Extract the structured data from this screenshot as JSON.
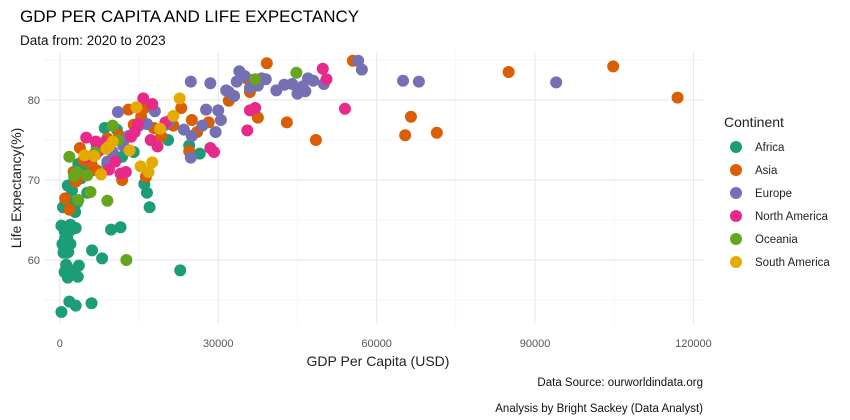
{
  "chart_data": {
    "type": "scatter",
    "title": "GDP PER CAPITA AND LIFE EXPECTANCY",
    "subtitle": "Data from: 2020 to 2023",
    "xlabel": "GDP Per Capita (USD)",
    "ylabel": "Life Expectancy(%)",
    "xlim": [
      -3000,
      122000
    ],
    "ylim": [
      52,
      86
    ],
    "x_ticks": [
      0,
      30000,
      60000,
      90000,
      120000
    ],
    "x_tick_labels": [
      "0",
      "30000",
      "60000",
      "90000",
      "120000"
    ],
    "y_ticks": [
      60,
      70,
      80
    ],
    "y_tick_labels": [
      "60",
      "70",
      "80"
    ],
    "grid": true,
    "legend": {
      "title": "Continent",
      "position": "right"
    },
    "captions": [
      "Data Source: ourworldindata.org",
      "Analysis by Bright Sackey (Data Analyst)"
    ],
    "series": [
      {
        "name": "Africa",
        "color": "#1b9e77",
        "points": [
          [
            300,
            53.5
          ],
          [
            1800,
            54.8
          ],
          [
            6000,
            54.6
          ],
          [
            3000,
            54.3
          ],
          [
            1500,
            57.8
          ],
          [
            3400,
            57.9
          ],
          [
            900,
            58.5
          ],
          [
            2500,
            58.7
          ],
          [
            22800,
            58.7
          ],
          [
            1200,
            59.4
          ],
          [
            3600,
            59.3
          ],
          [
            700,
            60.9
          ],
          [
            1300,
            60.9
          ],
          [
            800,
            61.5
          ],
          [
            1600,
            61.0
          ],
          [
            500,
            62.0
          ],
          [
            1000,
            62.7
          ],
          [
            1400,
            62.8
          ],
          [
            2000,
            62.0
          ],
          [
            6100,
            61.2
          ],
          [
            8000,
            60.2
          ],
          [
            900,
            63.6
          ],
          [
            2200,
            63.8
          ],
          [
            3000,
            64.0
          ],
          [
            2000,
            64.4
          ],
          [
            300,
            64.3
          ],
          [
            2900,
            66.0
          ],
          [
            600,
            66.6
          ],
          [
            1000,
            67.0
          ],
          [
            1500,
            67.5
          ],
          [
            3300,
            67.2
          ],
          [
            2300,
            68.7
          ],
          [
            1500,
            69.3
          ],
          [
            5200,
            68.4
          ],
          [
            2600,
            69.7
          ],
          [
            11500,
            64.1
          ],
          [
            9700,
            63.8
          ],
          [
            17000,
            66.6
          ],
          [
            16500,
            68.4
          ],
          [
            16000,
            69.5
          ],
          [
            4000,
            70.2
          ],
          [
            4500,
            71.1
          ],
          [
            6000,
            71.2
          ],
          [
            3500,
            72.0
          ],
          [
            5500,
            72.5
          ],
          [
            8500,
            76.5
          ],
          [
            9000,
            72.0
          ],
          [
            11800,
            72.9
          ],
          [
            14000,
            73.5
          ],
          [
            10800,
            76.3
          ],
          [
            26500,
            73.3
          ],
          [
            24500,
            74.3
          ],
          [
            20500,
            75.0
          ],
          [
            7000,
            74.1
          ]
        ]
      },
      {
        "name": "Asia",
        "color": "#d95f02",
        "points": [
          [
            1800,
            66.3
          ],
          [
            1000,
            67.7
          ],
          [
            3000,
            69.8
          ],
          [
            4800,
            70.6
          ],
          [
            7000,
            71.2
          ],
          [
            11800,
            70.0
          ],
          [
            16300,
            70.4
          ],
          [
            2600,
            71.0
          ],
          [
            4500,
            72.5
          ],
          [
            5800,
            72.3
          ],
          [
            6800,
            73.2
          ],
          [
            8200,
            74.5
          ],
          [
            9000,
            75.2
          ],
          [
            11200,
            75.6
          ],
          [
            12300,
            75.2
          ],
          [
            14000,
            76.9
          ],
          [
            15400,
            77.9
          ],
          [
            17800,
            76.5
          ],
          [
            21500,
            76.8
          ],
          [
            25000,
            77.5
          ],
          [
            26000,
            76.0
          ],
          [
            28200,
            77.2
          ],
          [
            19200,
            75.5
          ],
          [
            24500,
            73.6
          ],
          [
            23000,
            79.0
          ],
          [
            13000,
            78.8
          ],
          [
            16000,
            79.0
          ],
          [
            32000,
            79.9
          ],
          [
            35400,
            82.7
          ],
          [
            37500,
            77.8
          ],
          [
            39200,
            84.6
          ],
          [
            43000,
            77.2
          ],
          [
            48500,
            75.0
          ],
          [
            55500,
            84.9
          ],
          [
            65400,
            75.6
          ],
          [
            66500,
            77.9
          ],
          [
            71400,
            75.9
          ],
          [
            85000,
            83.5
          ],
          [
            104800,
            84.2
          ],
          [
            117000,
            80.3
          ],
          [
            36000,
            81.0
          ],
          [
            6000,
            72.0
          ],
          [
            3800,
            74.0
          ]
        ]
      },
      {
        "name": "Europe",
        "color": "#7570b3",
        "points": [
          [
            9000,
            72.3
          ],
          [
            10000,
            73.5
          ],
          [
            12000,
            74.3
          ],
          [
            13000,
            75.5
          ],
          [
            11000,
            78.5
          ],
          [
            15000,
            76.8
          ],
          [
            16500,
            77.0
          ],
          [
            18000,
            78.6
          ],
          [
            20000,
            76.9
          ],
          [
            21000,
            77.5
          ],
          [
            23500,
            76.3
          ],
          [
            25000,
            75.5
          ],
          [
            24800,
            72.8
          ],
          [
            27000,
            76.8
          ],
          [
            27700,
            78.8
          ],
          [
            29500,
            76.0
          ],
          [
            30000,
            78.7
          ],
          [
            30500,
            77.5
          ],
          [
            31500,
            81.2
          ],
          [
            32000,
            81.0
          ],
          [
            33000,
            80.5
          ],
          [
            33500,
            82.3
          ],
          [
            34000,
            83.6
          ],
          [
            35000,
            83.0
          ],
          [
            36000,
            81.5
          ],
          [
            37500,
            81.8
          ],
          [
            39000,
            82.6
          ],
          [
            41000,
            81.2
          ],
          [
            42500,
            81.9
          ],
          [
            44000,
            82.0
          ],
          [
            45000,
            80.8
          ],
          [
            46000,
            81.7
          ],
          [
            47000,
            82.7
          ],
          [
            48000,
            82.4
          ],
          [
            46500,
            81.1
          ],
          [
            50000,
            82.0
          ],
          [
            56500,
            84.9
          ],
          [
            57200,
            83.8
          ],
          [
            65000,
            82.4
          ],
          [
            68000,
            82.3
          ],
          [
            94000,
            82.2
          ],
          [
            24800,
            82.3
          ],
          [
            28500,
            82.1
          ],
          [
            38200,
            82.7
          ]
        ]
      },
      {
        "name": "North America",
        "color": "#e7298a",
        "points": [
          [
            5000,
            75.3
          ],
          [
            6800,
            74.8
          ],
          [
            7500,
            73.7
          ],
          [
            8500,
            74.7
          ],
          [
            9300,
            71.3
          ],
          [
            10500,
            72.3
          ],
          [
            11500,
            70.8
          ],
          [
            13500,
            75.4
          ],
          [
            14200,
            76.0
          ],
          [
            14800,
            77.0
          ],
          [
            15800,
            80.2
          ],
          [
            17500,
            79.5
          ],
          [
            17200,
            75.0
          ],
          [
            18500,
            74.2
          ],
          [
            20000,
            77.2
          ],
          [
            28500,
            74.0
          ],
          [
            29200,
            73.5
          ],
          [
            35500,
            76.2
          ],
          [
            36000,
            78.7
          ],
          [
            37000,
            79.0
          ],
          [
            50500,
            82.6
          ],
          [
            49800,
            83.9
          ],
          [
            54000,
            78.9
          ],
          [
            5200,
            72.9
          ],
          [
            12500,
            71.0
          ]
        ]
      },
      {
        "name": "Oceania",
        "color": "#66a61e",
        "points": [
          [
            1800,
            72.9
          ],
          [
            2700,
            70.5
          ],
          [
            3200,
            71.0
          ],
          [
            3500,
            67.5
          ],
          [
            5800,
            68.5
          ],
          [
            9000,
            67.4
          ],
          [
            12600,
            60.0
          ],
          [
            5200,
            70.6
          ],
          [
            6700,
            73.4
          ],
          [
            10000,
            76.8
          ],
          [
            11000,
            75.0
          ],
          [
            37000,
            82.6
          ],
          [
            44800,
            83.4
          ]
        ]
      },
      {
        "name": "South America",
        "color": "#e6ab02",
        "points": [
          [
            4700,
            73.1
          ],
          [
            6500,
            73.0
          ],
          [
            7800,
            70.7
          ],
          [
            9300,
            74.2
          ],
          [
            10000,
            74.8
          ],
          [
            13200,
            73.7
          ],
          [
            15300,
            71.7
          ],
          [
            16800,
            71.0
          ],
          [
            17500,
            72.2
          ],
          [
            19000,
            76.4
          ],
          [
            21500,
            78.0
          ],
          [
            22700,
            80.2
          ],
          [
            14500,
            79.1
          ],
          [
            8800,
            73.9
          ]
        ]
      }
    ]
  }
}
